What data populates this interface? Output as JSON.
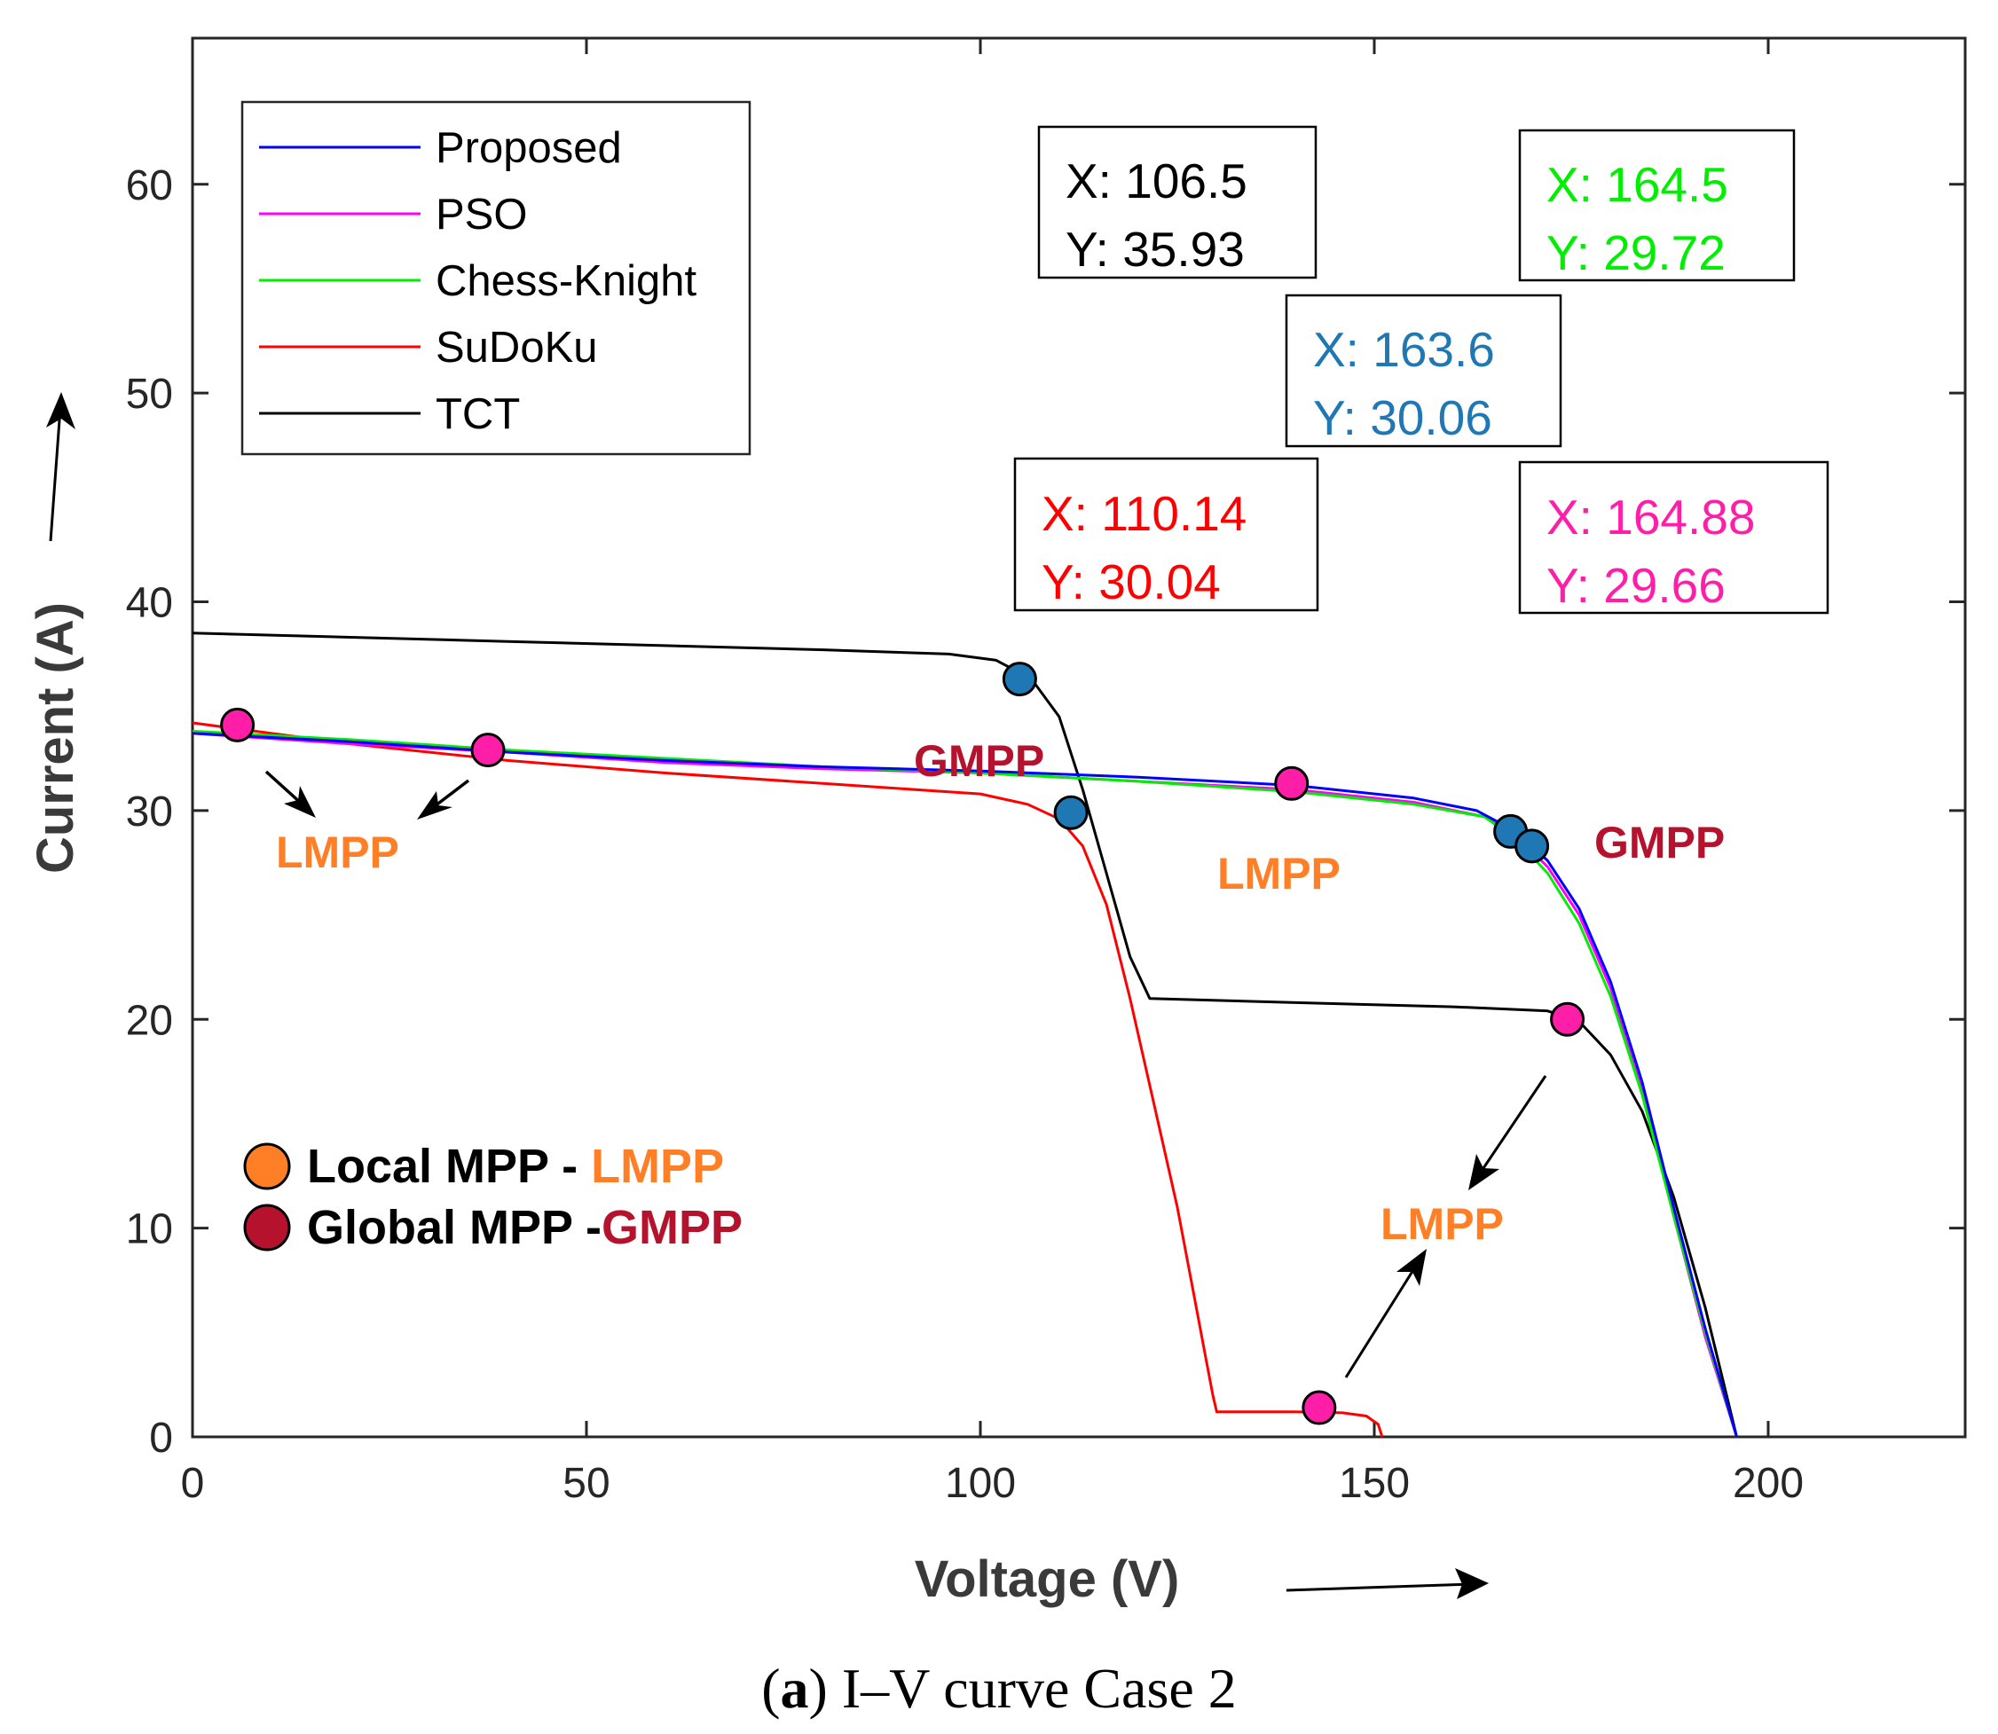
{
  "chart_data": {
    "type": "line",
    "caption_label": "a",
    "caption_text": ") I–V curve Case 2",
    "caption_open": "(",
    "xlabel": "Voltage (V)",
    "ylabel": "Current (A)",
    "xlim": [
      0,
      225
    ],
    "ylim": [
      0,
      67
    ],
    "xticks": [
      0,
      50,
      100,
      150,
      200
    ],
    "yticks": [
      0,
      10,
      20,
      30,
      40,
      50,
      60
    ],
    "legend_position": "top-left",
    "series": [
      {
        "name": "Proposed",
        "color": "#0000ff",
        "points": [
          [
            0,
            33.7
          ],
          [
            20,
            33.3
          ],
          [
            40,
            32.8
          ],
          [
            60,
            32.4
          ],
          [
            80,
            32.1
          ],
          [
            100,
            31.9
          ],
          [
            120,
            31.6
          ],
          [
            140,
            31.2
          ],
          [
            155,
            30.6
          ],
          [
            163,
            30.0
          ],
          [
            168,
            29.0
          ],
          [
            172,
            27.6
          ],
          [
            176,
            25.3
          ],
          [
            180,
            21.8
          ],
          [
            184,
            17.0
          ],
          [
            188,
            11.0
          ],
          [
            192,
            5.2
          ],
          [
            196,
            0
          ]
        ]
      },
      {
        "name": "PSO",
        "color": "#ff00ff",
        "points": [
          [
            0,
            33.7
          ],
          [
            20,
            33.2
          ],
          [
            40,
            32.8
          ],
          [
            60,
            32.3
          ],
          [
            80,
            32.0
          ],
          [
            100,
            31.8
          ],
          [
            120,
            31.4
          ],
          [
            140,
            31.0
          ],
          [
            155,
            30.4
          ],
          [
            164,
            29.7
          ],
          [
            168,
            28.8
          ],
          [
            172,
            27.3
          ],
          [
            176,
            25.0
          ],
          [
            180,
            21.5
          ],
          [
            184,
            16.6
          ],
          [
            188,
            10.6
          ],
          [
            192,
            4.8
          ],
          [
            196,
            0
          ]
        ]
      },
      {
        "name": "Chess-Knight",
        "color": "#00ee00",
        "points": [
          [
            0,
            33.8
          ],
          [
            20,
            33.4
          ],
          [
            40,
            32.9
          ],
          [
            60,
            32.5
          ],
          [
            80,
            32.1
          ],
          [
            100,
            31.8
          ],
          [
            120,
            31.4
          ],
          [
            140,
            30.9
          ],
          [
            155,
            30.3
          ],
          [
            164,
            29.7
          ],
          [
            168,
            28.6
          ],
          [
            172,
            27.0
          ],
          [
            176,
            24.6
          ],
          [
            180,
            21.1
          ],
          [
            184,
            16.4
          ],
          [
            188,
            10.6
          ],
          [
            192,
            5.0
          ],
          [
            196,
            0
          ]
        ]
      },
      {
        "name": "SuDoKu",
        "color": "#ff0000",
        "points": [
          [
            0,
            34.2
          ],
          [
            20,
            33.2
          ],
          [
            40,
            32.4
          ],
          [
            60,
            31.8
          ],
          [
            80,
            31.3
          ],
          [
            100,
            30.8
          ],
          [
            106,
            30.3
          ],
          [
            110,
            29.6
          ],
          [
            113,
            28.3
          ],
          [
            116,
            25.5
          ],
          [
            119,
            21.0
          ],
          [
            122,
            16.0
          ],
          [
            125,
            11.0
          ],
          [
            127,
            7.0
          ],
          [
            128.5,
            4.0
          ],
          [
            129.5,
            2.0
          ],
          [
            130,
            1.2
          ],
          [
            140,
            1.2
          ],
          [
            146,
            1.15
          ],
          [
            149,
            1.0
          ],
          [
            150.5,
            0.6
          ],
          [
            151,
            0
          ]
        ]
      },
      {
        "name": "TCT",
        "color": "#000000",
        "points": [
          [
            0,
            38.5
          ],
          [
            40,
            38.1
          ],
          [
            80,
            37.7
          ],
          [
            96,
            37.5
          ],
          [
            102,
            37.2
          ],
          [
            106.5,
            36.3
          ],
          [
            110,
            34.5
          ],
          [
            113,
            31.0
          ],
          [
            116,
            27.0
          ],
          [
            119,
            23.0
          ],
          [
            121.5,
            21.0
          ],
          [
            140,
            20.8
          ],
          [
            160,
            20.6
          ],
          [
            172,
            20.4
          ],
          [
            176,
            19.9
          ],
          [
            180,
            18.3
          ],
          [
            184,
            15.6
          ],
          [
            188,
            11.5
          ],
          [
            192,
            6.2
          ],
          [
            196,
            0
          ]
        ]
      }
    ],
    "markers": [
      {
        "x": 5.7,
        "y": 34.1,
        "color": "#ff1ea8"
      },
      {
        "x": 37.5,
        "y": 32.9,
        "color": "#ff1ea8"
      },
      {
        "x": 139.5,
        "y": 31.3,
        "color": "#ff1ea8"
      },
      {
        "x": 174.5,
        "y": 20.0,
        "color": "#ff1ea8"
      },
      {
        "x": 143.0,
        "y": 1.4,
        "color": "#ff1ea8"
      },
      {
        "x": 105.0,
        "y": 36.3,
        "color": "#1f77b4"
      },
      {
        "x": 111.5,
        "y": 29.9,
        "color": "#1f77b4"
      },
      {
        "x": 167.3,
        "y": 29.0,
        "color": "#1f77b4"
      },
      {
        "x": 170.0,
        "y": 28.3,
        "color": "#1f77b4"
      }
    ],
    "datatips": [
      {
        "x_text": "X: 106.5",
        "y_text": "Y: 35.93",
        "color": "#000000"
      },
      {
        "x_text": "X: 164.5",
        "y_text": "Y: 29.72",
        "color": "#00ee00"
      },
      {
        "x_text": "X: 163.6",
        "y_text": "Y: 30.06",
        "color": "#1f77b4"
      },
      {
        "x_text": "X: 110.14",
        "y_text": "Y: 30.04",
        "color": "#ff0000"
      },
      {
        "x_text": "X: 164.88",
        "y_text": "Y: 29.66",
        "color": "#ff1ea8"
      }
    ],
    "annotations": [
      {
        "text": "GMPP",
        "color": "#b5122e"
      },
      {
        "text": "GMPP",
        "color": "#b5122e"
      },
      {
        "text": "LMPP",
        "color": "#ff7f27"
      },
      {
        "text": "LMPP",
        "color": "#ff7f27"
      },
      {
        "text": "LMPP",
        "color": "#ff7f27"
      }
    ],
    "key": {
      "local_label": "Local MPP - ",
      "local_abbr": "LMPP",
      "local_color": "#ff7f27",
      "global_label": "Global MPP -",
      "global_abbr": "GMPP",
      "global_color": "#b5122e"
    }
  }
}
